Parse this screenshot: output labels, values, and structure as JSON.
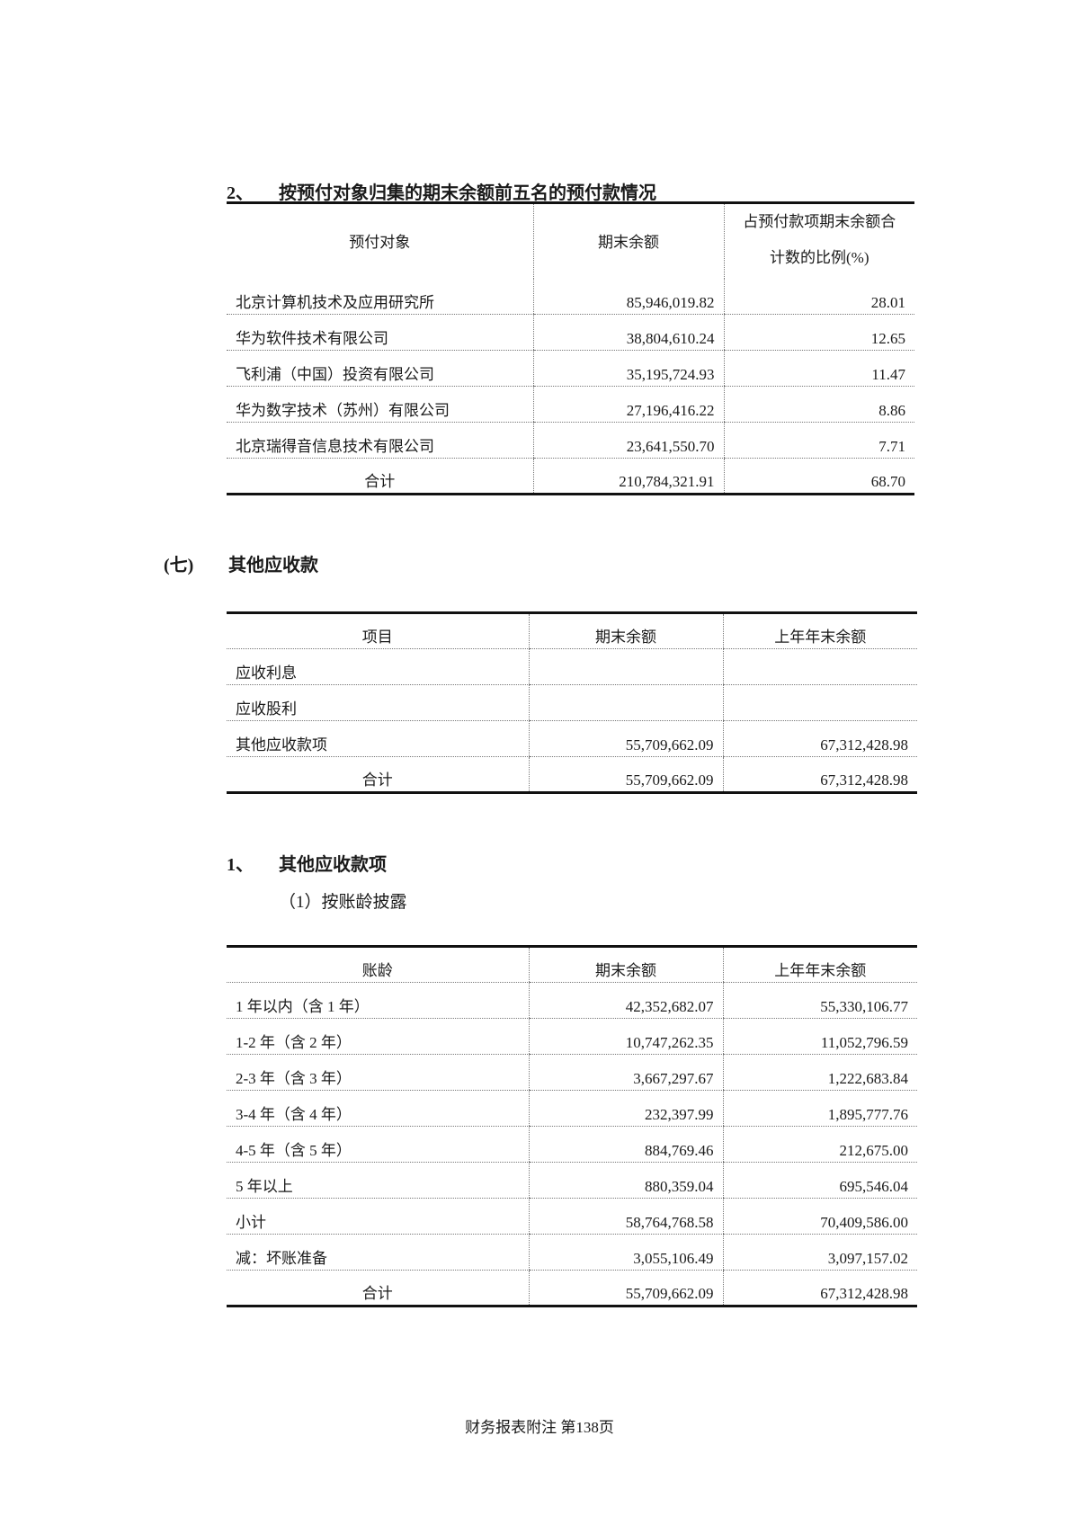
{
  "section1": {
    "number": "2、",
    "title": "按预付对象归集的期末余额前五名的预付款情况",
    "headers": [
      "预付对象",
      "期末余额",
      "占预付款项期末余额合",
      "计数的比例(%)"
    ],
    "rows": [
      [
        "北京计算机技术及应用研究所",
        "85,946,019.82",
        "28.01"
      ],
      [
        "华为软件技术有限公司",
        "38,804,610.24",
        "12.65"
      ],
      [
        "飞利浦（中国）投资有限公司",
        "35,195,724.93",
        "11.47"
      ],
      [
        "华为数字技术（苏州）有限公司",
        "27,196,416.22",
        "8.86"
      ],
      [
        "北京瑞得音信息技术有限公司",
        "23,641,550.70",
        "7.71"
      ]
    ],
    "total": [
      "合计",
      "210,784,321.91",
      "68.70"
    ]
  },
  "section2": {
    "number": "(七)",
    "title": "其他应收款",
    "headers": [
      "项目",
      "期末余额",
      "上年年末余额"
    ],
    "rows": [
      [
        "应收利息",
        "",
        ""
      ],
      [
        "应收股利",
        "",
        ""
      ],
      [
        "其他应收款项",
        "55,709,662.09",
        "67,312,428.98"
      ]
    ],
    "total": [
      "合计",
      "55,709,662.09",
      "67,312,428.98"
    ]
  },
  "section3": {
    "number": "1、",
    "title": "其他应收款项",
    "subtitle": "（1）按账龄披露",
    "headers": [
      "账龄",
      "期末余额",
      "上年年末余额"
    ],
    "rows": [
      [
        "1 年以内（含 1 年）",
        "42,352,682.07",
        "55,330,106.77"
      ],
      [
        "1-2 年（含 2 年）",
        "10,747,262.35",
        "11,052,796.59"
      ],
      [
        "2-3 年（含 3 年）",
        "3,667,297.67",
        "1,222,683.84"
      ],
      [
        "3-4 年（含 4 年）",
        "232,397.99",
        "1,895,777.76"
      ],
      [
        "4-5 年（含 5 年）",
        "884,769.46",
        "212,675.00"
      ],
      [
        "5 年以上",
        "880,359.04",
        "695,546.04"
      ],
      [
        "小计",
        "58,764,768.58",
        "70,409,586.00"
      ],
      [
        "减：坏账准备",
        "3,055,106.49",
        "3,097,157.02"
      ]
    ],
    "total": [
      "合计",
      "55,709,662.09",
      "67,312,428.98"
    ]
  },
  "footer": "财务报表附注  第138页"
}
